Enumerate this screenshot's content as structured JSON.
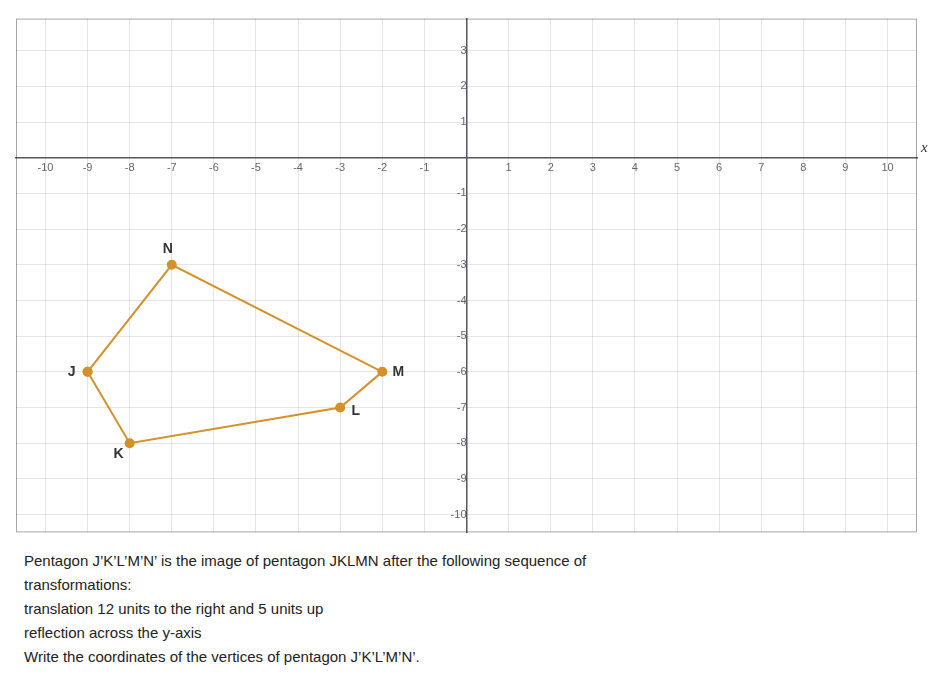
{
  "chart_data": {
    "type": "line",
    "x": [
      -9,
      -8,
      -3,
      -2,
      -7,
      -9
    ],
    "values": [
      -6,
      -8,
      -7,
      -6,
      -3,
      -6
    ],
    "labels": [
      "J",
      "K",
      "L",
      "M",
      "N",
      null
    ],
    "color": "#D4912A",
    "marker": "circle",
    "xlabel": "x",
    "xlim": [
      -10.7,
      10.7
    ],
    "ylim": [
      -10.5,
      3.9
    ],
    "xticks": [
      -10,
      -9,
      -8,
      -7,
      -6,
      -5,
      -4,
      -3,
      -2,
      -1,
      1,
      2,
      3,
      4,
      5,
      6,
      7,
      8,
      9,
      10
    ],
    "yticks": [
      -10,
      -9,
      -8,
      -7,
      -6,
      -5,
      -4,
      -3,
      -2,
      -1,
      1,
      2,
      3
    ],
    "grid": true,
    "annotations": [
      "Pentagon J’K’L’M’N’ is the image of pentagon JKLMN after the following sequence of",
      "transformations:",
      "translation 12 units to the right and 5 units up",
      "reflection across the y-axis",
      "Write the coordinates of the vertices of pentagon J’K’L’M’N’."
    ]
  }
}
